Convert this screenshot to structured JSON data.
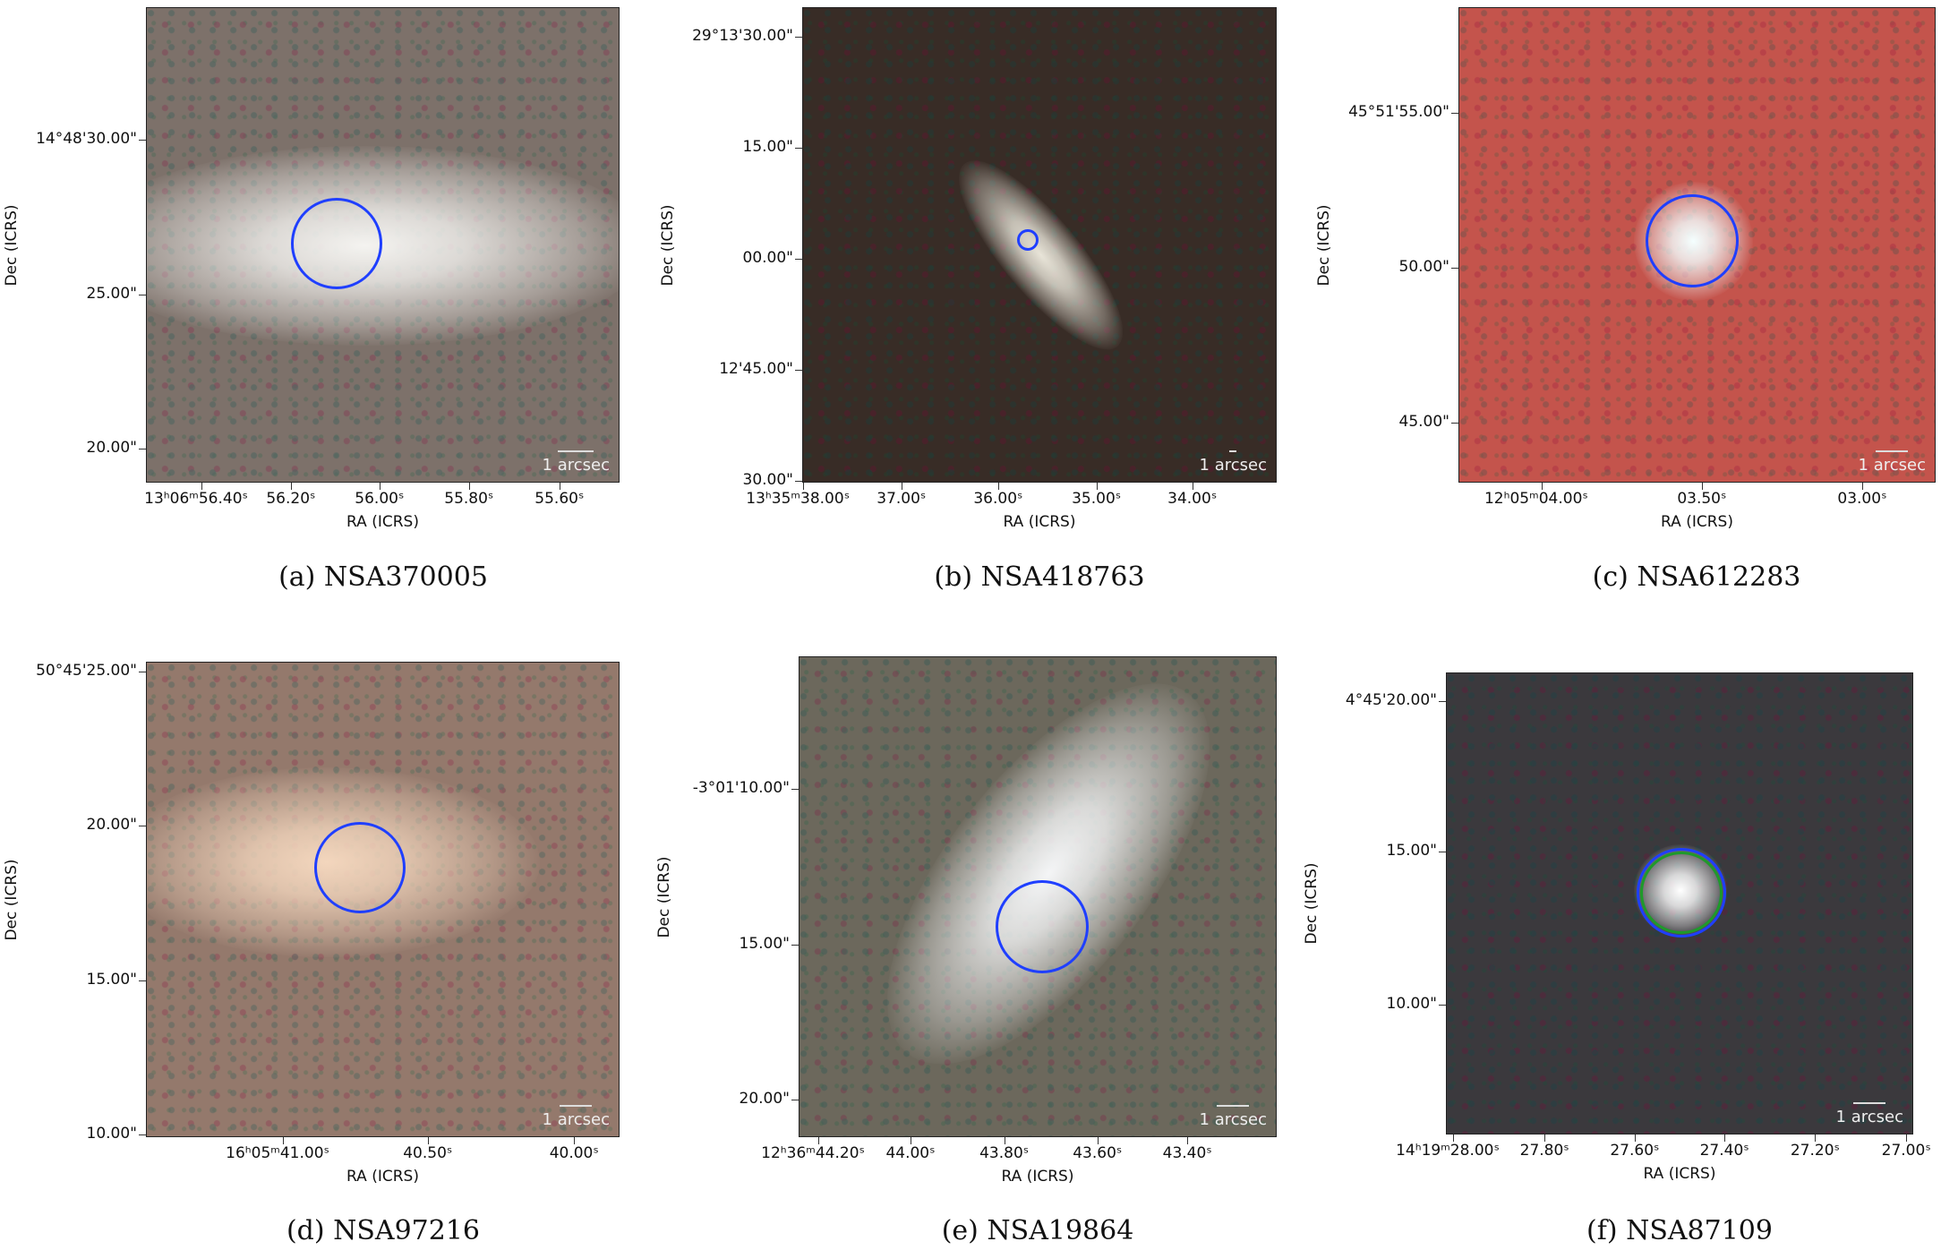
{
  "panels": [
    {
      "caption": "(a) NSA370005",
      "xlabel": "RA (ICRS)",
      "ylabel": "Dec (ICRS)",
      "scalebar": "1 arcsec",
      "ra_ticks": [
        "13ʰ06ᵐ56.40ˢ",
        "56.20ˢ",
        "56.00ˢ",
        "55.80ˢ",
        "55.60ˢ"
      ],
      "dec_ticks": [
        "14°48'30.00\"",
        "25.00\"",
        "20.00\""
      ],
      "aperture_colors": [
        "#1f3fff"
      ],
      "background": "#7d716a",
      "source": "#f4f3f0"
    },
    {
      "caption": "(b) NSA418763",
      "xlabel": "RA (ICRS)",
      "ylabel": "Dec (ICRS)",
      "scalebar": "1 arcsec",
      "ra_ticks": [
        "13ʰ35ᵐ38.00ˢ",
        "37.00ˢ",
        "36.00ˢ",
        "35.00ˢ",
        "34.00ˢ"
      ],
      "dec_ticks": [
        "29°13'30.00\"",
        "15.00\"",
        "00.00\"",
        "12'45.00\"",
        "30.00\""
      ],
      "aperture_colors": [
        "#1f3fff"
      ],
      "background": "#382c26",
      "source": "#e8e4d8"
    },
    {
      "caption": "(c) NSA612283",
      "xlabel": "RA (ICRS)",
      "ylabel": "Dec (ICRS)",
      "scalebar": "1 arcsec",
      "ra_ticks": [
        "12ʰ05ᵐ04.00ˢ",
        "03.50ˢ",
        "03.00ˢ"
      ],
      "dec_ticks": [
        "45°51'55.00\"",
        "50.00\"",
        "45.00\""
      ],
      "aperture_colors": [
        "#1f3fff"
      ],
      "background": "#c4544c",
      "source": "#f4ffff"
    },
    {
      "caption": "(d) NSA97216",
      "xlabel": "RA (ICRS)",
      "ylabel": "Dec (ICRS)",
      "scalebar": "1 arcsec",
      "ra_ticks": [
        "16ʰ05ᵐ41.00ˢ",
        "40.50ˢ",
        "40.00ˢ"
      ],
      "dec_ticks": [
        "50°45'25.00\"",
        "20.00\"",
        "15.00\"",
        "10.00\""
      ],
      "aperture_colors": [
        "#1f3fff"
      ],
      "background": "#94796c",
      "source": "#f3d6bd"
    },
    {
      "caption": "(e) NSA19864",
      "xlabel": "RA (ICRS)",
      "ylabel": "Dec (ICRS)",
      "scalebar": "1 arcsec",
      "ra_ticks": [
        "12ʰ36ᵐ44.20ˢ",
        "44.00ˢ",
        "43.80ˢ",
        "43.60ˢ",
        "43.40ˢ"
      ],
      "dec_ticks": [
        "-3°01'10.00\"",
        "15.00\"",
        "20.00\""
      ],
      "aperture_colors": [
        "#1f3fff"
      ],
      "background": "#6c685c",
      "source": "#f4f5f6"
    },
    {
      "caption": "(f) NSA87109",
      "xlabel": "RA (ICRS)",
      "ylabel": "Dec (ICRS)",
      "scalebar": "1 arcsec",
      "ra_ticks": [
        "14ʰ19ᵐ28.00ˢ",
        "27.80ˢ",
        "27.60ˢ",
        "27.40ˢ",
        "27.20ˢ",
        "27.00ˢ"
      ],
      "dec_ticks": [
        "4°45'20.00\"",
        "15.00\"",
        "10.00\""
      ],
      "aperture_colors": [
        "#1f3fff",
        "#1e9a2a"
      ],
      "background": "#3b393d",
      "source": "#ffffff"
    }
  ]
}
